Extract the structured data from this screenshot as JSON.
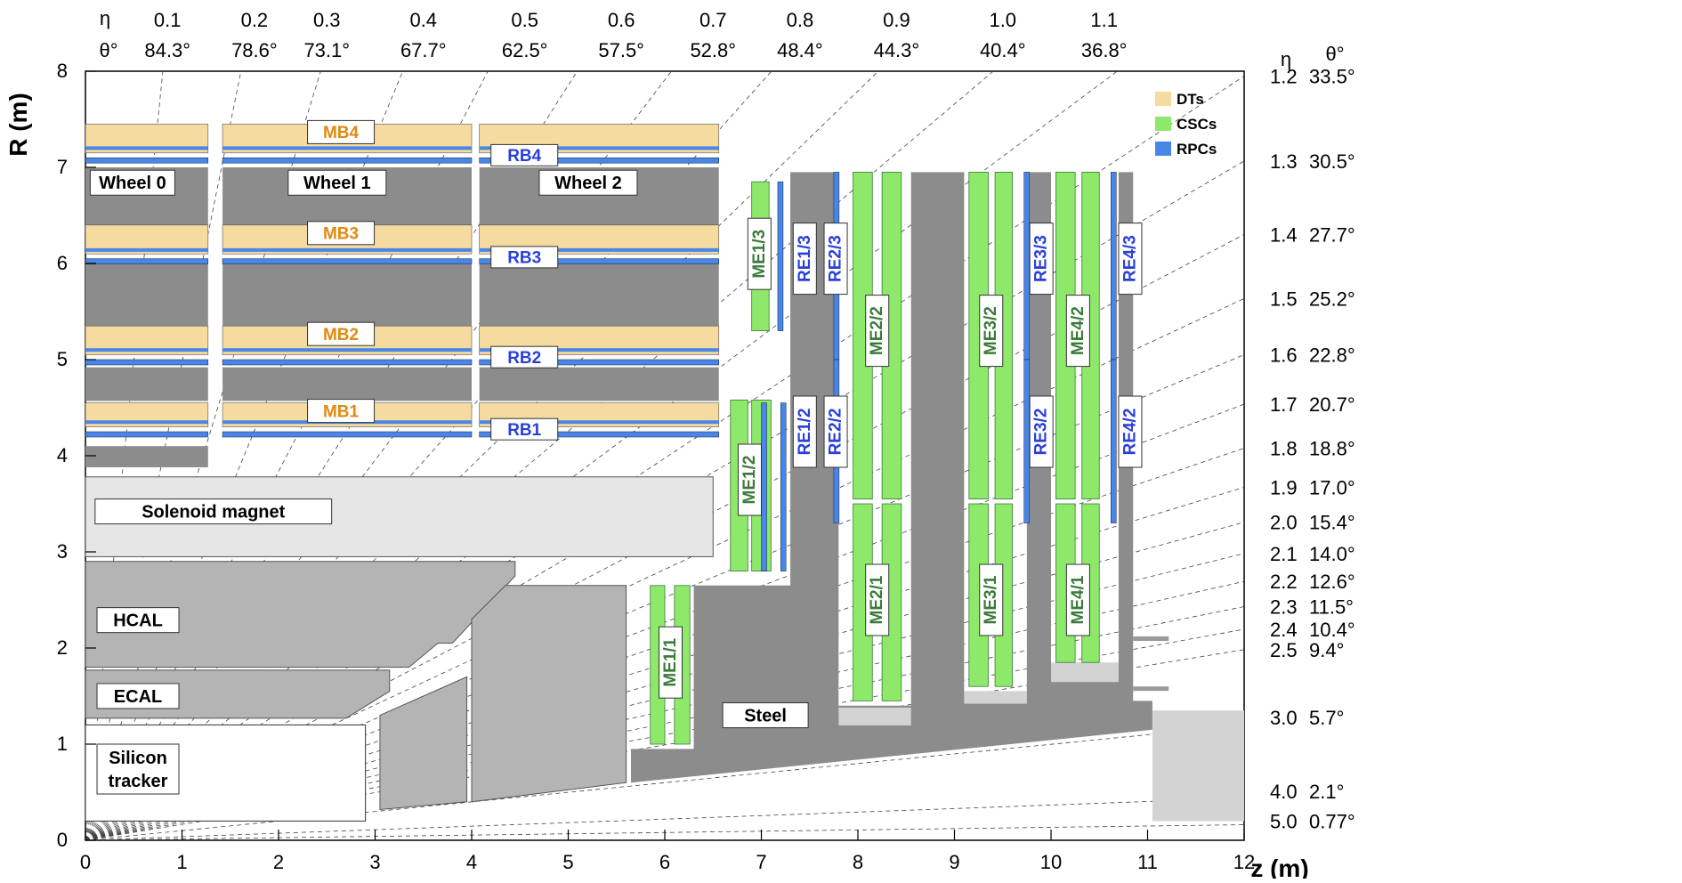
{
  "axes": {
    "x_label": "z (m)",
    "y_label": "R (m)",
    "x_ticks": [
      "0",
      "1",
      "2",
      "3",
      "4",
      "5",
      "6",
      "7",
      "8",
      "9",
      "10",
      "11",
      "12"
    ],
    "y_ticks": [
      "0",
      "1",
      "2",
      "3",
      "4",
      "5",
      "6",
      "7",
      "8"
    ]
  },
  "top_header": {
    "eta_symbol": "η",
    "theta_symbol": "θ°"
  },
  "right_header": {
    "eta_symbol": "η",
    "theta_symbol": "θ°"
  },
  "top_scale": [
    {
      "eta": "0.1",
      "theta": "84.3°"
    },
    {
      "eta": "0.2",
      "theta": "78.6°"
    },
    {
      "eta": "0.3",
      "theta": "73.1°"
    },
    {
      "eta": "0.4",
      "theta": "67.7°"
    },
    {
      "eta": "0.5",
      "theta": "62.5°"
    },
    {
      "eta": "0.6",
      "theta": "57.5°"
    },
    {
      "eta": "0.7",
      "theta": "52.8°"
    },
    {
      "eta": "0.8",
      "theta": "48.4°"
    },
    {
      "eta": "0.9",
      "theta": "44.3°"
    },
    {
      "eta": "1.0",
      "theta": "40.4°"
    },
    {
      "eta": "1.1",
      "theta": "36.8°"
    }
  ],
  "right_scale": [
    {
      "eta": "1.2",
      "theta": "33.5°"
    },
    {
      "eta": "1.3",
      "theta": "30.5°"
    },
    {
      "eta": "1.4",
      "theta": "27.7°"
    },
    {
      "eta": "1.5",
      "theta": "25.2°"
    },
    {
      "eta": "1.6",
      "theta": "22.8°"
    },
    {
      "eta": "1.7",
      "theta": "20.7°"
    },
    {
      "eta": "1.8",
      "theta": "18.8°"
    },
    {
      "eta": "1.9",
      "theta": "17.0°"
    },
    {
      "eta": "2.0",
      "theta": "15.4°"
    },
    {
      "eta": "2.1",
      "theta": "14.0°"
    },
    {
      "eta": "2.2",
      "theta": "12.6°"
    },
    {
      "eta": "2.3",
      "theta": "11.5°"
    },
    {
      "eta": "2.4",
      "theta": "10.4°"
    },
    {
      "eta": "2.5",
      "theta": "9.4°"
    },
    {
      "eta": "3.0",
      "theta": "5.7°"
    },
    {
      "eta": "4.0",
      "theta": "2.1°"
    },
    {
      "eta": "5.0",
      "theta": "0.77°"
    }
  ],
  "legend": [
    {
      "label": "DTs",
      "color": "#f5dba0"
    },
    {
      "label": "CSCs",
      "color": "#8ee86a"
    },
    {
      "label": "RPCs",
      "color": "#4a86e8"
    }
  ],
  "labels": {
    "wheels": [
      "Wheel 0",
      "Wheel 1",
      "Wheel 2"
    ],
    "mb": [
      "MB4",
      "MB3",
      "MB2",
      "MB1"
    ],
    "rb": [
      "RB4",
      "RB3",
      "RB2",
      "RB1"
    ],
    "me": [
      "ME1/3",
      "ME1/2",
      "ME1/1",
      "ME2/2",
      "ME2/1",
      "ME3/2",
      "ME3/1",
      "ME4/2",
      "ME4/1"
    ],
    "re": [
      "RE1/3",
      "RE2/3",
      "RE1/2",
      "RE2/2",
      "RE3/3",
      "RE3/2",
      "RE4/3",
      "RE4/2"
    ],
    "components": {
      "solenoid": "Solenoid magnet",
      "hcal": "HCAL",
      "ecal": "ECAL",
      "tracker_line1": "Silicon",
      "tracker_line2": "tracker",
      "steel": "Steel"
    }
  },
  "colors": {
    "dt": "#f5dba0",
    "csc": "#8ee86a",
    "rpc": "#4a86e8",
    "steel": "#8c8c8c",
    "calorimeter": "#b4b4b4",
    "solenoid": "#e6e6e6",
    "mb_text": "#e08a10",
    "rb_text": "#2a3fd8",
    "me_text": "#3a7a3a"
  }
}
